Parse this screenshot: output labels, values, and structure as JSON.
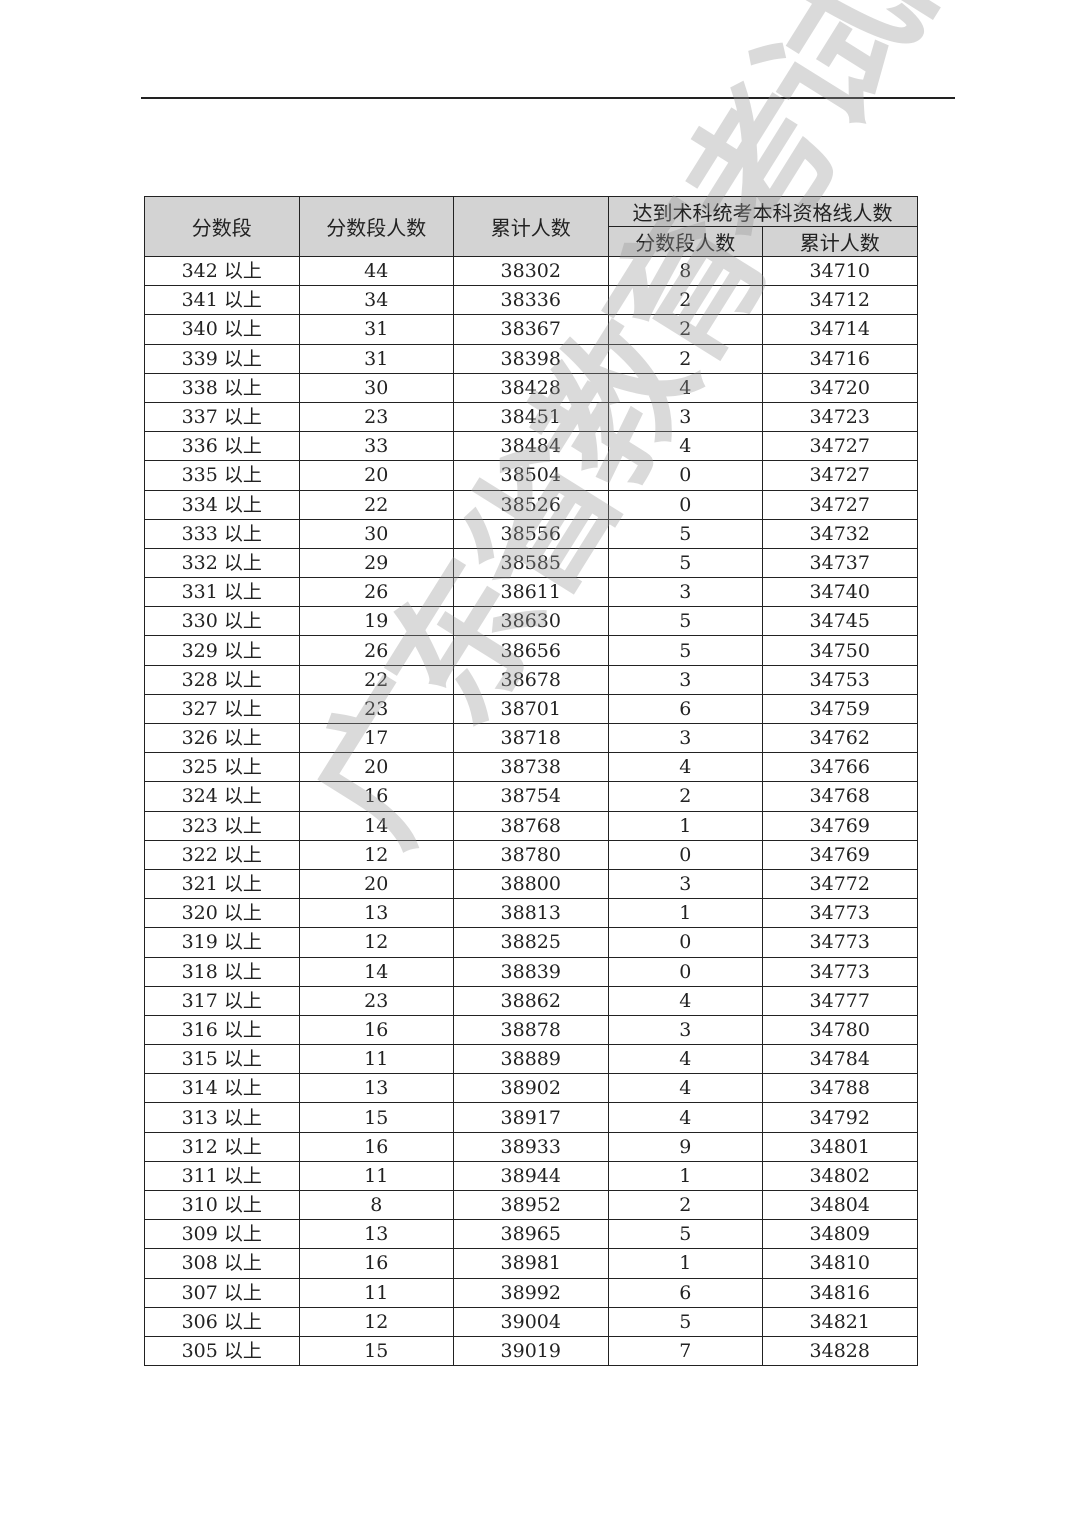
{
  "header": {
    "score_band": "分数段",
    "band_count": "分数段人数",
    "cumulative": "累计人数",
    "group_title": "达到术科统考本科资格线人数",
    "group_band_count": "分数段人数",
    "group_cumulative": "累计人数"
  },
  "watermark": "广东省教育考试院",
  "rows": [
    [
      "342 以上",
      "44",
      "38302",
      "8",
      "34710"
    ],
    [
      "341 以上",
      "34",
      "38336",
      "2",
      "34712"
    ],
    [
      "340 以上",
      "31",
      "38367",
      "2",
      "34714"
    ],
    [
      "339 以上",
      "31",
      "38398",
      "2",
      "34716"
    ],
    [
      "338 以上",
      "30",
      "38428",
      "4",
      "34720"
    ],
    [
      "337 以上",
      "23",
      "38451",
      "3",
      "34723"
    ],
    [
      "336 以上",
      "33",
      "38484",
      "4",
      "34727"
    ],
    [
      "335 以上",
      "20",
      "38504",
      "0",
      "34727"
    ],
    [
      "334 以上",
      "22",
      "38526",
      "0",
      "34727"
    ],
    [
      "333 以上",
      "30",
      "38556",
      "5",
      "34732"
    ],
    [
      "332 以上",
      "29",
      "38585",
      "5",
      "34737"
    ],
    [
      "331 以上",
      "26",
      "38611",
      "3",
      "34740"
    ],
    [
      "330 以上",
      "19",
      "38630",
      "5",
      "34745"
    ],
    [
      "329 以上",
      "26",
      "38656",
      "5",
      "34750"
    ],
    [
      "328 以上",
      "22",
      "38678",
      "3",
      "34753"
    ],
    [
      "327 以上",
      "23",
      "38701",
      "6",
      "34759"
    ],
    [
      "326 以上",
      "17",
      "38718",
      "3",
      "34762"
    ],
    [
      "325 以上",
      "20",
      "38738",
      "4",
      "34766"
    ],
    [
      "324 以上",
      "16",
      "38754",
      "2",
      "34768"
    ],
    [
      "323 以上",
      "14",
      "38768",
      "1",
      "34769"
    ],
    [
      "322 以上",
      "12",
      "38780",
      "0",
      "34769"
    ],
    [
      "321 以上",
      "20",
      "38800",
      "3",
      "34772"
    ],
    [
      "320 以上",
      "13",
      "38813",
      "1",
      "34773"
    ],
    [
      "319 以上",
      "12",
      "38825",
      "0",
      "34773"
    ],
    [
      "318 以上",
      "14",
      "38839",
      "0",
      "34773"
    ],
    [
      "317 以上",
      "23",
      "38862",
      "4",
      "34777"
    ],
    [
      "316 以上",
      "16",
      "38878",
      "3",
      "34780"
    ],
    [
      "315 以上",
      "11",
      "38889",
      "4",
      "34784"
    ],
    [
      "314 以上",
      "13",
      "38902",
      "4",
      "34788"
    ],
    [
      "313 以上",
      "15",
      "38917",
      "4",
      "34792"
    ],
    [
      "312 以上",
      "16",
      "38933",
      "9",
      "34801"
    ],
    [
      "311 以上",
      "11",
      "38944",
      "1",
      "34802"
    ],
    [
      "310 以上",
      "8",
      "38952",
      "2",
      "34804"
    ],
    [
      "309 以上",
      "13",
      "38965",
      "5",
      "34809"
    ],
    [
      "308 以上",
      "16",
      "38981",
      "1",
      "34810"
    ],
    [
      "307 以上",
      "11",
      "38992",
      "6",
      "34816"
    ],
    [
      "306 以上",
      "12",
      "39004",
      "5",
      "34821"
    ],
    [
      "305 以上",
      "15",
      "39019",
      "7",
      "34828"
    ]
  ]
}
